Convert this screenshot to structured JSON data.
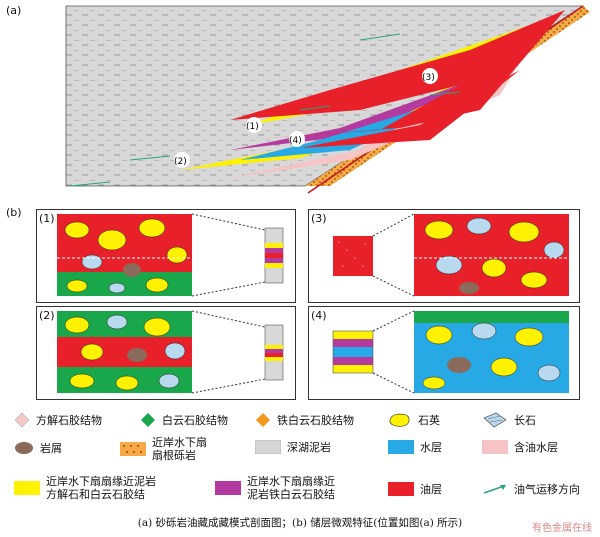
{
  "panel_a": {
    "label": "(a)",
    "markers": [
      "(1)",
      "(2)",
      "(3)",
      "(4)"
    ]
  },
  "panel_b": {
    "label": "(b)",
    "boxes": [
      "(1)",
      "(2)",
      "(3)",
      "(4)"
    ]
  },
  "legend": [
    {
      "text": "方解石胶结物",
      "symbol": "diamond",
      "color": "#f5c7c7"
    },
    {
      "text": "白云石胶结物",
      "symbol": "diamond",
      "color": "#1aa64a"
    },
    {
      "text": "铁白云石胶结物",
      "symbol": "diamond",
      "color": "#f39a1e"
    },
    {
      "text": "石英",
      "symbol": "blob",
      "color": "#ffee00"
    },
    {
      "text": "长石",
      "symbol": "feldspar",
      "color": "#b9d9ee"
    },
    {
      "text": "岩屑",
      "symbol": "ellipse",
      "color": "#8a6a5a"
    },
    {
      "text": "近岸水下扇\n扇根砾岩",
      "symbol": "rect-dots",
      "color": "#f5a23a"
    },
    {
      "text": "深湖泥岩",
      "symbol": "rect",
      "color": "#d6d6d6"
    },
    {
      "text": "水层",
      "symbol": "rect",
      "color": "#27a9e6"
    },
    {
      "text": "含油水层",
      "symbol": "rect",
      "color": "#f6c4c4"
    },
    {
      "text": "近岸水下扇扇缘近泥岩\n方解石和白云石胶结",
      "symbol": "rect",
      "color": "#fff200"
    },
    {
      "text": "近岸水下扇扇缘近\n泥岩铁白云石胶结",
      "symbol": "rect",
      "color": "#b43aa0"
    },
    {
      "text": "油层",
      "symbol": "rect",
      "color": "#e8202a"
    },
    {
      "text": "油气运移方向",
      "symbol": "arrow",
      "color": "#2aa37a"
    }
  ],
  "caption": "(a) 砂砾岩油藏成藏模式剖面图；(b) 储层微观特征(位置如图(a) 所示)",
  "watermark": "有色金属在线"
}
